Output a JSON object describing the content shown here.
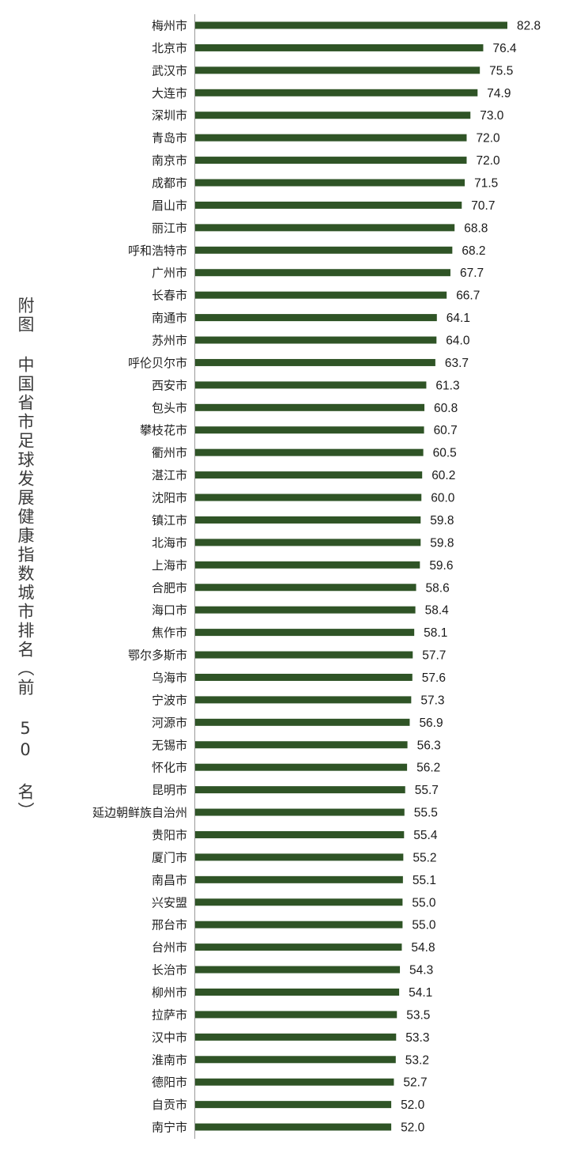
{
  "chart_data": {
    "type": "bar",
    "orientation": "horizontal",
    "title": "附图 中国省市足球发展健康指数城市排名（前 50 名）",
    "bar_color": "#2f5426",
    "categories": [
      "梅州市",
      "北京市",
      "武汉市",
      "大连市",
      "深圳市",
      "青岛市",
      "南京市",
      "成都市",
      "眉山市",
      "丽江市",
      "呼和浩特市",
      "广州市",
      "长春市",
      "南通市",
      "苏州市",
      "呼伦贝尔市",
      "西安市",
      "包头市",
      "攀枝花市",
      "衢州市",
      "湛江市",
      "沈阳市",
      "镇江市",
      "北海市",
      "上海市",
      "合肥市",
      "海口市",
      "焦作市",
      "鄂尔多斯市",
      "乌海市",
      "宁波市",
      "河源市",
      "无锡市",
      "怀化市",
      "昆明市",
      "延边朝鲜族自治州",
      "贵阳市",
      "厦门市",
      "南昌市",
      "兴安盟",
      "邢台市",
      "台州市",
      "长治市",
      "柳州市",
      "拉萨市",
      "汉中市",
      "淮南市",
      "德阳市",
      "自贡市",
      "南宁市"
    ],
    "values": [
      82.8,
      76.4,
      75.5,
      74.9,
      73.0,
      72.0,
      72.0,
      71.5,
      70.7,
      68.8,
      68.2,
      67.7,
      66.7,
      64.1,
      64.0,
      63.7,
      61.3,
      60.8,
      60.7,
      60.5,
      60.2,
      60.0,
      59.8,
      59.8,
      59.6,
      58.6,
      58.4,
      58.1,
      57.7,
      57.6,
      57.3,
      56.9,
      56.3,
      56.2,
      55.7,
      55.5,
      55.4,
      55.2,
      55.1,
      55.0,
      55.0,
      54.8,
      54.3,
      54.1,
      53.5,
      53.3,
      53.2,
      52.7,
      52.0,
      52.0
    ],
    "value_labels": [
      "82.8",
      "76.4",
      "75.5",
      "74.9",
      "73.0",
      "72.0",
      "72.0",
      "71.5",
      "70.7",
      "68.8",
      "68.2",
      "67.7",
      "66.7",
      "64.1",
      "64.0",
      "63.7",
      "61.3",
      "60.8",
      "60.7",
      "60.5",
      "60.2",
      "60.0",
      "59.8",
      "59.8",
      "59.6",
      "58.6",
      "58.4",
      "58.1",
      "57.7",
      "57.6",
      "57.3",
      "56.9",
      "56.3",
      "56.2",
      "55.7",
      "55.5",
      "55.4",
      "55.2",
      "55.1",
      "55.0",
      "55.0",
      "54.8",
      "54.3",
      "54.1",
      "53.5",
      "53.3",
      "53.2",
      "52.7",
      "52.0",
      "52.0"
    ],
    "xlim": [
      0,
      82.8
    ],
    "grid": false,
    "legend": "none"
  }
}
